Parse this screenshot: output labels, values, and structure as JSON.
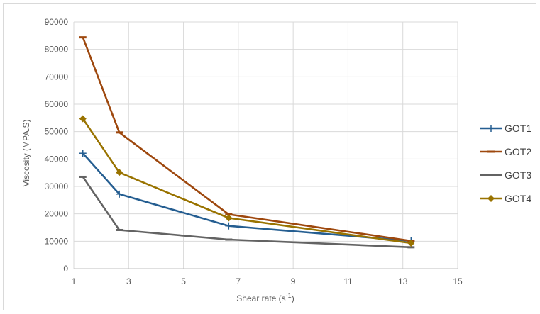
{
  "chart_data": {
    "type": "line",
    "title": "",
    "xlabel": "Shear rate (s",
    "xlabel_sup": "-1",
    "xlabel_end": ")",
    "ylabel": "Viscosity (MPA.S)",
    "xlim": [
      1,
      15
    ],
    "ylim": [
      0,
      90000
    ],
    "xticks": [
      "1",
      "3",
      "5",
      "7",
      "9",
      "11",
      "13",
      "15"
    ],
    "yticks": [
      "0",
      "10000",
      "20000",
      "30000",
      "40000",
      "50000",
      "60000",
      "70000",
      "80000",
      "90000"
    ],
    "grid": true,
    "legend_position": "right",
    "series": [
      {
        "name": "GOT1",
        "color": "#255e91",
        "marker": "plus",
        "x": [
          1.33,
          2.66,
          6.65,
          13.3
        ],
        "y": [
          42100,
          27200,
          15600,
          10100
        ]
      },
      {
        "name": "GOT2",
        "color": "#9e480e",
        "marker": "dash",
        "x": [
          1.33,
          2.66,
          6.65,
          13.3
        ],
        "y": [
          84400,
          49700,
          19800,
          10100
        ]
      },
      {
        "name": "GOT3",
        "color": "#636363",
        "marker": "dash",
        "x": [
          1.33,
          2.66,
          6.65,
          13.3
        ],
        "y": [
          33500,
          14100,
          10600,
          7800
        ]
      },
      {
        "name": "GOT4",
        "color": "#997300",
        "marker": "diamond",
        "x": [
          1.33,
          2.66,
          6.65,
          13.3
        ],
        "y": [
          54700,
          35100,
          18500,
          9300
        ]
      }
    ]
  }
}
